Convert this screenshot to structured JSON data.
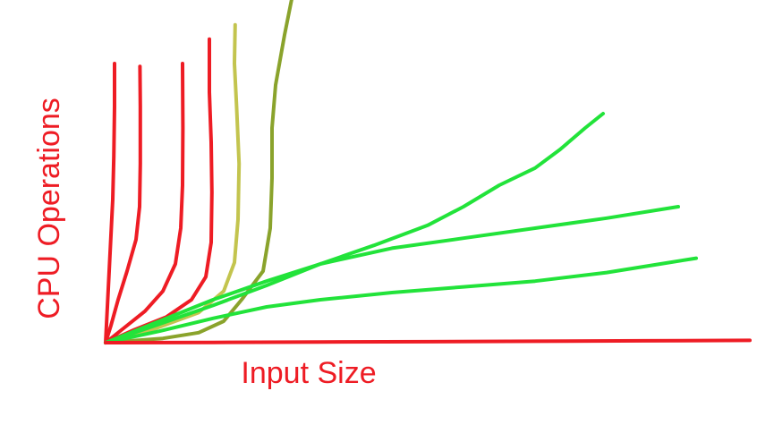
{
  "chart_data": {
    "type": "line",
    "title": "",
    "xlabel": "Input Size",
    "ylabel": "CPU Operations",
    "grid": false,
    "legend": "none",
    "colors": {
      "red": "#ee1c24",
      "olive_light": "#c3c44e",
      "olive_dark": "#8aa32c",
      "green": "#22e33a",
      "axis_label": "#ee1c24"
    },
    "series": [
      {
        "color_key": "red",
        "points": [
          [
            0,
            0
          ],
          [
            0.4,
            20
          ],
          [
            0.8,
            40
          ],
          [
            1.2,
            60
          ],
          [
            1.6,
            80
          ],
          [
            2.0,
            100
          ],
          [
            2.3,
            130
          ],
          [
            2.5,
            165
          ],
          [
            2.5,
            195
          ]
        ]
      },
      {
        "color_key": "red",
        "points": [
          [
            0,
            0
          ],
          [
            1.5,
            12
          ],
          [
            3.5,
            30
          ],
          [
            6.0,
            50
          ],
          [
            8.5,
            72
          ],
          [
            9.5,
            95
          ],
          [
            9.7,
            125
          ],
          [
            9.7,
            165
          ],
          [
            9.6,
            193
          ]
        ]
      },
      {
        "color_key": "red",
        "points": [
          [
            0,
            0
          ],
          [
            5,
            10
          ],
          [
            11,
            22
          ],
          [
            16,
            36
          ],
          [
            19.5,
            55
          ],
          [
            21,
            80
          ],
          [
            21.5,
            110
          ],
          [
            21.6,
            150
          ],
          [
            21.5,
            195
          ]
        ]
      },
      {
        "color_key": "red",
        "points": [
          [
            0,
            0
          ],
          [
            8,
            9
          ],
          [
            17,
            18
          ],
          [
            24,
            30
          ],
          [
            28,
            46
          ],
          [
            29.5,
            70
          ],
          [
            29.7,
            105
          ],
          [
            29.5,
            140
          ],
          [
            29.0,
            175
          ],
          [
            29.0,
            212
          ]
        ]
      },
      {
        "color_key": "olive_light",
        "points": [
          [
            0,
            0
          ],
          [
            14,
            10
          ],
          [
            26,
            21
          ],
          [
            33,
            36
          ],
          [
            36,
            56
          ],
          [
            37,
            86
          ],
          [
            37.3,
            125
          ],
          [
            36.6,
            165
          ],
          [
            36.0,
            195
          ],
          [
            36.2,
            222
          ]
        ]
      },
      {
        "color_key": "olive_dark",
        "points": [
          [
            0,
            0
          ],
          [
            16,
            3
          ],
          [
            26,
            7
          ],
          [
            33,
            15
          ],
          [
            38,
            30
          ],
          [
            44,
            50
          ],
          [
            46,
            80
          ],
          [
            46.5,
            115
          ],
          [
            46.5,
            150
          ],
          [
            47.5,
            180
          ],
          [
            50,
            215
          ],
          [
            52,
            240
          ]
        ]
      },
      {
        "color_key": "green",
        "points": [
          [
            0,
            0
          ],
          [
            15,
            13
          ],
          [
            30,
            26
          ],
          [
            45,
            40
          ],
          [
            60,
            55
          ],
          [
            75,
            68
          ],
          [
            90,
            82
          ],
          [
            100,
            95
          ],
          [
            110,
            110
          ],
          [
            120,
            122
          ],
          [
            127,
            135
          ],
          [
            134,
            150
          ],
          [
            139,
            160
          ]
        ]
      },
      {
        "color_key": "green",
        "points": [
          [
            0,
            0
          ],
          [
            15,
            15
          ],
          [
            30,
            30
          ],
          [
            45,
            43
          ],
          [
            60,
            55
          ],
          [
            80,
            66
          ],
          [
            100,
            73
          ],
          [
            120,
            80
          ],
          [
            140,
            87
          ],
          [
            160,
            95
          ]
        ]
      },
      {
        "color_key": "green",
        "points": [
          [
            0,
            0
          ],
          [
            15,
            8
          ],
          [
            30,
            17
          ],
          [
            45,
            25
          ],
          [
            60,
            30
          ],
          [
            80,
            35
          ],
          [
            100,
            39
          ],
          [
            120,
            43
          ],
          [
            140,
            49
          ],
          [
            155,
            55
          ],
          [
            165,
            59
          ]
        ]
      },
      {
        "color_key": "red",
        "points": [
          [
            0,
            0
          ],
          [
            30,
            0.2
          ],
          [
            60,
            0.5
          ],
          [
            90,
            0.7
          ],
          [
            120,
            1
          ],
          [
            150,
            1.3
          ],
          [
            180,
            1.6
          ]
        ]
      }
    ]
  }
}
